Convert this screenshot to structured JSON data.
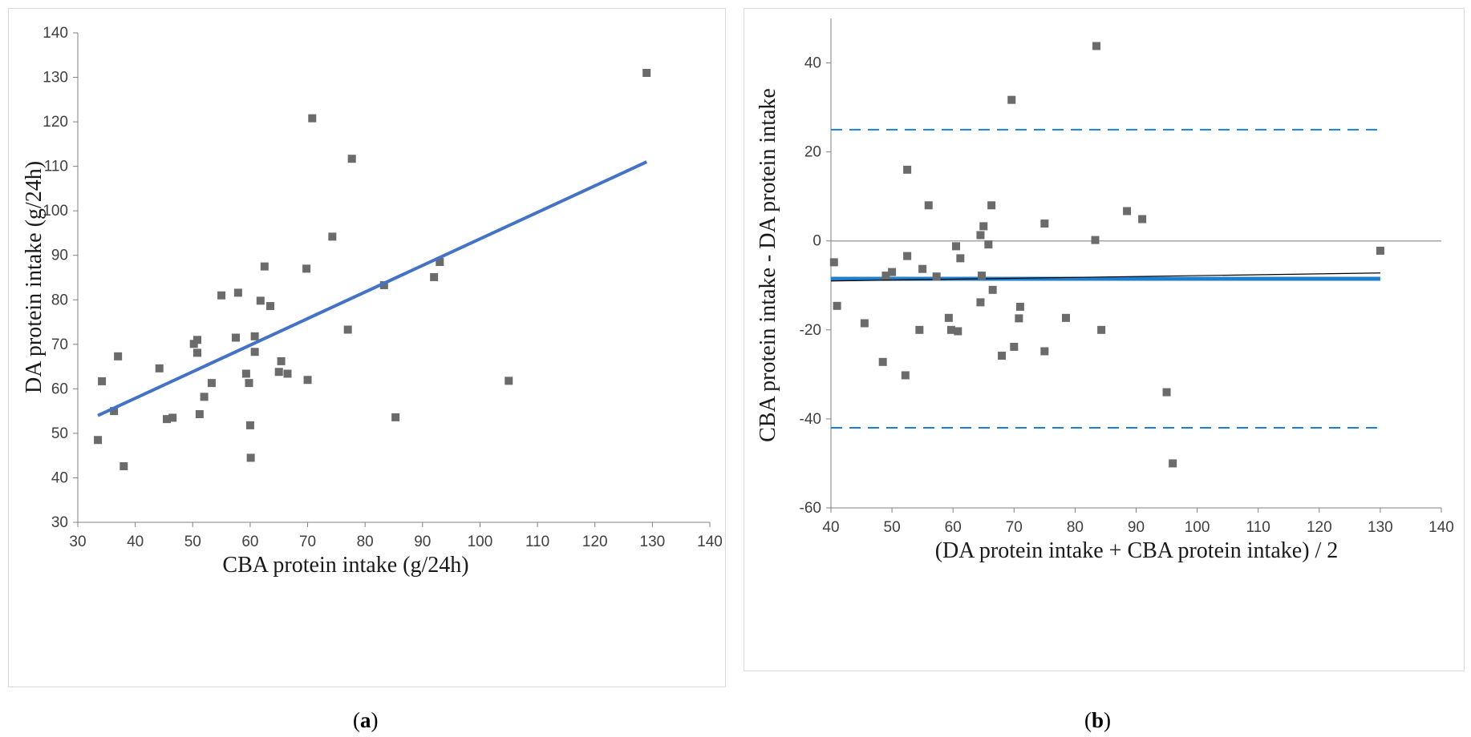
{
  "chart_data": [
    {
      "panel": "a",
      "type": "scatter",
      "caption_open": "(",
      "caption_letter": "a",
      "caption_close": ")",
      "xlabel": "CBA protein intake (g/24h)",
      "ylabel": "DA protein intake (g/24h)",
      "xlim": [
        30,
        140
      ],
      "ylim": [
        30,
        140
      ],
      "xticks": [
        30,
        40,
        50,
        60,
        70,
        80,
        90,
        100,
        110,
        120,
        130,
        140
      ],
      "yticks": [
        30,
        40,
        50,
        60,
        70,
        80,
        90,
        100,
        110,
        120,
        130,
        140
      ],
      "grid": false,
      "marker_color": "#6b6b6b",
      "line_color": "#4472c4",
      "points": [
        [
          33.5,
          48.5
        ],
        [
          34.2,
          61.7
        ],
        [
          36.3,
          55.0
        ],
        [
          37.0,
          67.3
        ],
        [
          38.0,
          42.6
        ],
        [
          44.2,
          64.6
        ],
        [
          45.5,
          53.2
        ],
        [
          46.5,
          53.5
        ],
        [
          50.2,
          70.1
        ],
        [
          50.8,
          71.0
        ],
        [
          50.8,
          68.1
        ],
        [
          51.2,
          54.3
        ],
        [
          52.0,
          58.2
        ],
        [
          53.3,
          61.3
        ],
        [
          55.0,
          81.0
        ],
        [
          57.5,
          71.5
        ],
        [
          57.9,
          81.6
        ],
        [
          59.3,
          63.4
        ],
        [
          59.8,
          61.3
        ],
        [
          60.0,
          51.8
        ],
        [
          60.1,
          44.5
        ],
        [
          60.8,
          71.8
        ],
        [
          60.8,
          68.3
        ],
        [
          61.8,
          79.8
        ],
        [
          62.5,
          87.5
        ],
        [
          63.5,
          78.6
        ],
        [
          65.0,
          63.8
        ],
        [
          65.4,
          66.2
        ],
        [
          66.5,
          63.4
        ],
        [
          69.8,
          87.0
        ],
        [
          70.0,
          62.0
        ],
        [
          70.8,
          120.8
        ],
        [
          74.3,
          94.2
        ],
        [
          77.0,
          73.3
        ],
        [
          77.7,
          111.7
        ],
        [
          83.3,
          83.3
        ],
        [
          85.3,
          53.6
        ],
        [
          92.0,
          85.1
        ],
        [
          93.0,
          88.5
        ],
        [
          105.0,
          61.8
        ],
        [
          129.0,
          131.0
        ]
      ],
      "fit_line": [
        [
          33.5,
          54.0
        ],
        [
          129.0,
          111.0
        ]
      ]
    },
    {
      "panel": "b",
      "type": "scatter",
      "caption_open": "(",
      "caption_letter": "b",
      "caption_close": ")",
      "xlabel": "(DA protein intake + CBA protein intake) / 2",
      "ylabel": "CBA protein intake - DA protein intake",
      "xlim": [
        40,
        140
      ],
      "ylim": [
        -60,
        50
      ],
      "xticks": [
        40,
        50,
        60,
        70,
        80,
        90,
        100,
        110,
        120,
        130,
        140
      ],
      "yticks": [
        -60,
        -40,
        -20,
        0,
        20,
        40
      ],
      "grid": false,
      "marker_color": "#6b6b6b",
      "mean_line": -8.5,
      "mean_color": "#1f7fcc",
      "limits_of_agreement": [
        25.0,
        -42.0
      ],
      "loa_color": "#1f7fcc",
      "zero_line": 0,
      "zero_color": "#a6a6a6",
      "trend_line": [
        [
          40.0,
          -9.0
        ],
        [
          130.0,
          -7.2
        ]
      ],
      "trend_color": "#000000",
      "points": [
        [
          40.5,
          -4.8
        ],
        [
          41.0,
          -14.6
        ],
        [
          45.5,
          -18.5
        ],
        [
          48.5,
          -27.2
        ],
        [
          49.0,
          -7.8
        ],
        [
          50.0,
          -7.0
        ],
        [
          52.2,
          -30.2
        ],
        [
          52.5,
          -3.4
        ],
        [
          52.5,
          16.0
        ],
        [
          54.5,
          -20.0
        ],
        [
          55.0,
          -6.3
        ],
        [
          56.0,
          8.0
        ],
        [
          57.3,
          -8.0
        ],
        [
          59.3,
          -17.3
        ],
        [
          59.7,
          -20.0
        ],
        [
          60.5,
          -1.2
        ],
        [
          60.8,
          -20.3
        ],
        [
          61.2,
          -3.9
        ],
        [
          64.5,
          -13.8
        ],
        [
          64.5,
          1.3
        ],
        [
          64.7,
          -7.8
        ],
        [
          65.0,
          3.3
        ],
        [
          65.8,
          -0.8
        ],
        [
          66.3,
          8.0
        ],
        [
          66.5,
          -11.0
        ],
        [
          68.0,
          -25.8
        ],
        [
          69.6,
          31.7
        ],
        [
          70.0,
          -23.8
        ],
        [
          70.8,
          -17.4
        ],
        [
          71.0,
          -14.8
        ],
        [
          75.0,
          3.9
        ],
        [
          75.0,
          -24.8
        ],
        [
          78.5,
          -17.3
        ],
        [
          83.3,
          0.2
        ],
        [
          83.5,
          43.8
        ],
        [
          84.3,
          -20.0
        ],
        [
          88.5,
          6.7
        ],
        [
          91.0,
          4.9
        ],
        [
          95.0,
          -34.0
        ],
        [
          96.0,
          -50.0
        ],
        [
          130.0,
          -2.2
        ]
      ]
    }
  ]
}
